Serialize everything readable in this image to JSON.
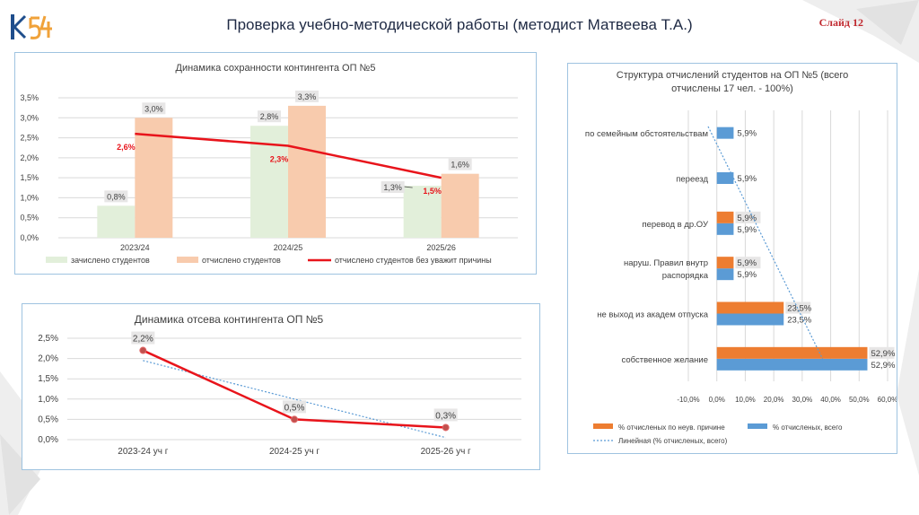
{
  "header": {
    "title": "Проверка  учебно-методической  работы (методист Матвеева Т.А.)",
    "slide_label": "Слайд 12"
  },
  "colors": {
    "enrolled": "#e2efda",
    "expelled": "#f8cbad",
    "line_red": "#e8141b",
    "orange": "#ed7d31",
    "blue": "#5b9bd5",
    "trend": "#5b9bd5",
    "label_box": "#e7e6e6",
    "grid": "#d9d9d9",
    "panel_border": "#9fc3e0"
  },
  "chart_data": [
    {
      "id": "contingent",
      "type": "bar",
      "title": "Динамика сохранности контингента ОП №5",
      "categories": [
        "2023/24",
        "2024/25",
        "2025/26"
      ],
      "series": [
        {
          "name": "зачислено студентов",
          "values": [
            0.8,
            2.8,
            1.3
          ],
          "labels": [
            "0,8%",
            "2,8%",
            "1,3%"
          ]
        },
        {
          "name": "отчислено студентов",
          "values": [
            3.0,
            3.3,
            1.6
          ],
          "labels": [
            "3,0%",
            "3,3%",
            "1,6%"
          ]
        },
        {
          "name": "отчислено студентов  без уважит причины",
          "kind": "line",
          "values": [
            2.6,
            2.3,
            1.5
          ],
          "labels": [
            "2,6%",
            "2,3%",
            "1,5%"
          ]
        }
      ],
      "yticks": [
        "0,0%",
        "0,5%",
        "1,0%",
        "1,5%",
        "2,0%",
        "2,5%",
        "3,0%",
        "3,5%"
      ],
      "ylim": [
        0,
        3.5
      ],
      "legend_position": "bottom"
    },
    {
      "id": "dropout",
      "type": "line",
      "title": "Динамика отсева контингента ОП №5",
      "categories": [
        "2023-24 уч г",
        "2024-25 уч г",
        "2025-26 уч г"
      ],
      "values": [
        2.2,
        0.5,
        0.3
      ],
      "labels": [
        "2,2%",
        "0,5%",
        "0,3%"
      ],
      "trend": [
        1.95,
        1.0,
        0.05
      ],
      "yticks": [
        "0,0%",
        "0,5%",
        "1,0%",
        "1,5%",
        "2,0%",
        "2,5%"
      ],
      "ylim": [
        0,
        2.5
      ]
    },
    {
      "id": "structure",
      "type": "bar",
      "orientation": "horizontal",
      "title_lines": [
        "Структура  отчислений студентов на ОП №5  (всего",
        "отчислены 17 чел. - 100%)"
      ],
      "categories": [
        [
          "по семейным обстоятельствам"
        ],
        [
          "переезд"
        ],
        [
          "перевод в др.ОУ"
        ],
        [
          "наруш. Правил внутр",
          "распорядка"
        ],
        [
          "не выход из академ отпуска"
        ],
        [
          "собственное желание"
        ]
      ],
      "series": [
        {
          "name": "% отчисленых по неув. причине",
          "values": [
            null,
            null,
            5.9,
            5.9,
            23.5,
            52.9
          ],
          "labels": [
            "",
            "",
            "5,9%",
            "5,9%",
            "23,5%",
            "52,9%"
          ]
        },
        {
          "name": "% отчисленых, всего",
          "values": [
            5.9,
            5.9,
            5.9,
            5.9,
            23.5,
            52.9
          ],
          "labels": [
            "5,9%",
            "5,9%",
            "5,9%",
            "5,9%",
            "23,5%",
            "52,9%"
          ]
        }
      ],
      "trend_name": "Линейная (% отчисленых, всего)",
      "xticks": [
        "-10,0%",
        "0,0%",
        "10,0%",
        "20,0%",
        "30,0%",
        "40,0%",
        "50,0%",
        "60,0%"
      ],
      "xlim": [
        -10,
        60
      ]
    }
  ]
}
